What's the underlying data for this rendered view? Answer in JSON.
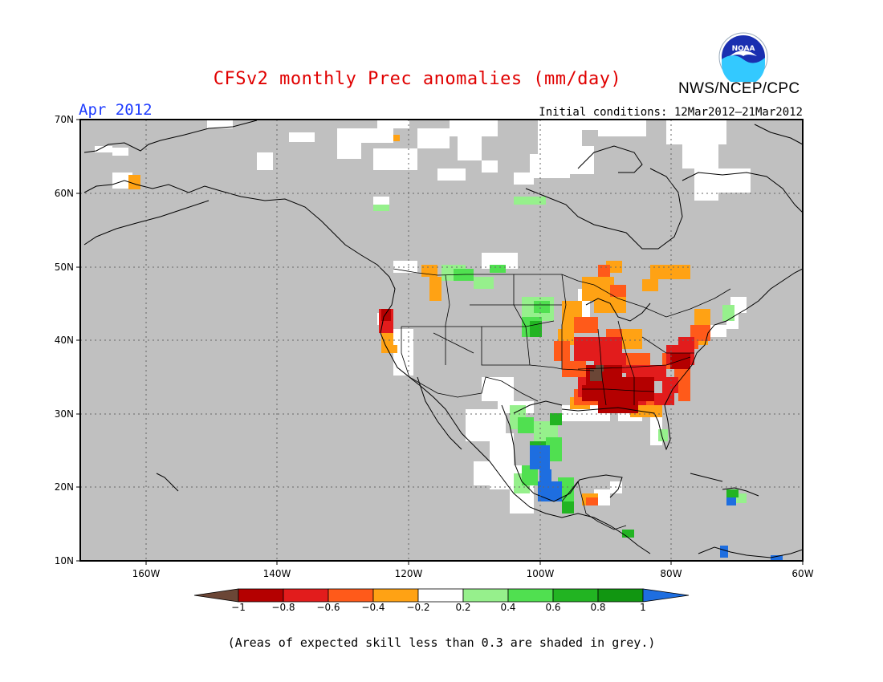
{
  "header": {
    "title": "CFSv2 monthly Prec anomalies (mm/day)",
    "month": "Apr 2012",
    "initial_conditions": "Initial conditions: 12Mar2012–21Mar2012",
    "agency": "NWS/NCEP/CPC",
    "logo_text": "NOAA"
  },
  "axes": {
    "lat_ticks": [
      "70N",
      "60N",
      "50N",
      "40N",
      "30N",
      "20N",
      "10N"
    ],
    "lon_ticks": [
      "160W",
      "140W",
      "120W",
      "100W",
      "80W",
      "60W"
    ],
    "lat_range": [
      10,
      70
    ],
    "lon_range": [
      -170,
      -60
    ],
    "grid": "dotted"
  },
  "colorbar": {
    "ticks": [
      "−1",
      "−0.8",
      "−0.6",
      "−0.4",
      "−0.2",
      "0.2",
      "0.4",
      "0.6",
      "0.8",
      "1"
    ],
    "colors": [
      "#6b4636",
      "#b40000",
      "#e21c1c",
      "#ff5a1a",
      "#ffa214",
      "#ffffff",
      "#96f08c",
      "#50e050",
      "#22b422",
      "#119611",
      "#1e6ee0"
    ]
  },
  "colors": {
    "skill_grey": "#c0c0c0",
    "title": "#e00000",
    "month": "#1e3cff"
  },
  "caption": "(Areas of expected skill less than 0.3 are shaded in grey.)"
}
